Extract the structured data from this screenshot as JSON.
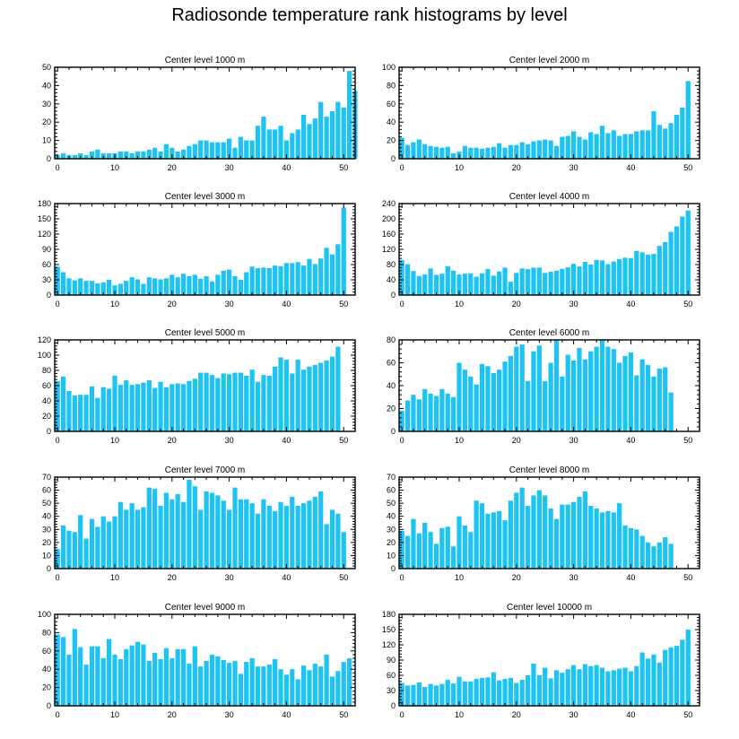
{
  "title": "Radiosonde temperature rank histograms by level",
  "colors": {
    "bar": "#1ec3f4",
    "axis": "#000000"
  },
  "chart_data": [
    {
      "type": "bar",
      "title": "Center level 1000 m",
      "xlim": [
        -0.5,
        52
      ],
      "xticks": [
        0,
        10,
        20,
        30,
        40,
        50
      ],
      "ylim": [
        0,
        50
      ],
      "yticks": [
        0,
        10,
        20,
        30,
        40,
        50
      ],
      "values": [
        2,
        3,
        2,
        2,
        3,
        2,
        4,
        5,
        3,
        3,
        3,
        4,
        4,
        3,
        4,
        4,
        5,
        6,
        4,
        8,
        6,
        4,
        5,
        7,
        8,
        10,
        10,
        9,
        9,
        9,
        11,
        6,
        12,
        10,
        10,
        18,
        23,
        16,
        16,
        18,
        10,
        14,
        16,
        24,
        19,
        22,
        31,
        23,
        26,
        31,
        28,
        48,
        37
      ]
    },
    {
      "type": "bar",
      "title": "Center level 2000 m",
      "xlim": [
        -0.5,
        52
      ],
      "xticks": [
        0,
        10,
        20,
        30,
        40,
        50
      ],
      "ylim": [
        0,
        100
      ],
      "yticks": [
        0,
        20,
        40,
        60,
        80,
        100
      ],
      "values": [
        23,
        15,
        18,
        21,
        16,
        14,
        13,
        12,
        13,
        6,
        8,
        14,
        12,
        12,
        11,
        12,
        13,
        17,
        12,
        15,
        15,
        18,
        16,
        19,
        20,
        21,
        20,
        14,
        24,
        25,
        30,
        24,
        21,
        29,
        27,
        36,
        28,
        31,
        25,
        27,
        27,
        30,
        31,
        31,
        52,
        37,
        33,
        39,
        48,
        56,
        85
      ]
    },
    {
      "type": "bar",
      "title": "Center level 3000 m",
      "xlim": [
        -0.5,
        52
      ],
      "xticks": [
        0,
        10,
        20,
        30,
        40,
        50
      ],
      "ylim": [
        0,
        180
      ],
      "yticks": [
        0,
        30,
        60,
        90,
        120,
        150,
        180
      ],
      "values": [
        56,
        45,
        33,
        29,
        33,
        28,
        28,
        23,
        25,
        30,
        19,
        22,
        28,
        35,
        31,
        22,
        35,
        33,
        31,
        33,
        40,
        35,
        42,
        37,
        40,
        32,
        37,
        27,
        40,
        48,
        50,
        37,
        30,
        45,
        56,
        53,
        54,
        53,
        58,
        57,
        63,
        63,
        65,
        58,
        71,
        61,
        72,
        93,
        80,
        100,
        172
      ]
    },
    {
      "type": "bar",
      "title": "Center level 4000 m",
      "xlim": [
        -0.5,
        52
      ],
      "xticks": [
        0,
        10,
        20,
        30,
        40,
        50
      ],
      "ylim": [
        0,
        240
      ],
      "yticks": [
        0,
        40,
        80,
        120,
        160,
        200,
        240
      ],
      "values": [
        92,
        81,
        63,
        50,
        54,
        70,
        53,
        56,
        76,
        64,
        54,
        56,
        57,
        48,
        57,
        68,
        51,
        62,
        72,
        35,
        58,
        70,
        68,
        72,
        72,
        58,
        61,
        64,
        69,
        73,
        82,
        75,
        87,
        80,
        92,
        91,
        81,
        88,
        94,
        98,
        97,
        116,
        112,
        106,
        108,
        129,
        139,
        166,
        180,
        206,
        222
      ]
    },
    {
      "type": "bar",
      "title": "Center level 5000 m",
      "xlim": [
        -0.5,
        52
      ],
      "xticks": [
        0,
        10,
        20,
        30,
        40,
        50
      ],
      "ylim": [
        0,
        120
      ],
      "yticks": [
        0,
        20,
        40,
        60,
        80,
        100,
        120
      ],
      "values": [
        66,
        72,
        53,
        47,
        48,
        48,
        59,
        44,
        58,
        56,
        73,
        61,
        67,
        61,
        62,
        64,
        67,
        57,
        65,
        58,
        62,
        63,
        62,
        66,
        69,
        77,
        77,
        74,
        70,
        76,
        75,
        77,
        77,
        73,
        81,
        65,
        74,
        73,
        85,
        97,
        94,
        76,
        94,
        81,
        85,
        87,
        90,
        93,
        98,
        111
      ]
    },
    {
      "type": "bar",
      "title": "Center level 6000 m",
      "xlim": [
        -0.5,
        52
      ],
      "xticks": [
        0,
        10,
        20,
        30,
        40,
        50
      ],
      "ylim": [
        0,
        80
      ],
      "yticks": [
        0,
        20,
        40,
        60,
        80
      ],
      "values": [
        18,
        27,
        32,
        28,
        37,
        33,
        31,
        37,
        33,
        30,
        60,
        54,
        48,
        41,
        59,
        57,
        51,
        54,
        61,
        66,
        74,
        76,
        44,
        70,
        75,
        44,
        60,
        80,
        48,
        67,
        62,
        73,
        63,
        70,
        74,
        80,
        74,
        72,
        60,
        66,
        69,
        49,
        63,
        58,
        48,
        55,
        56,
        34
      ]
    },
    {
      "type": "bar",
      "title": "Center level 7000 m",
      "xlim": [
        -0.5,
        52
      ],
      "xticks": [
        0,
        10,
        20,
        30,
        40,
        50
      ],
      "ylim": [
        0,
        70
      ],
      "yticks": [
        0,
        10,
        20,
        30,
        40,
        50,
        60,
        70
      ],
      "values": [
        15,
        33,
        29,
        28,
        41,
        23,
        38,
        32,
        40,
        36,
        40,
        51,
        45,
        50,
        45,
        47,
        62,
        61,
        48,
        58,
        53,
        57,
        51,
        68,
        63,
        45,
        59,
        58,
        56,
        52,
        45,
        62,
        53,
        53,
        50,
        42,
        53,
        48,
        44,
        51,
        48,
        55,
        48,
        50,
        52,
        55,
        59,
        34,
        45,
        42,
        28
      ]
    },
    {
      "type": "bar",
      "title": "Center level 8000 m",
      "xlim": [
        -0.5,
        52
      ],
      "xticks": [
        0,
        10,
        20,
        30,
        40,
        50
      ],
      "ylim": [
        0,
        70
      ],
      "yticks": [
        0,
        10,
        20,
        30,
        40,
        50,
        60,
        70
      ],
      "values": [
        29,
        25,
        38,
        27,
        35,
        28,
        19,
        31,
        32,
        17,
        40,
        33,
        28,
        52,
        50,
        42,
        43,
        44,
        37,
        52,
        58,
        62,
        48,
        56,
        60,
        56,
        46,
        38,
        49,
        49,
        51,
        55,
        59,
        48,
        46,
        43,
        44,
        43,
        50,
        33,
        31,
        30,
        25,
        20,
        17,
        20,
        24,
        19
      ]
    },
    {
      "type": "bar",
      "title": "Center level 9000 m",
      "xlim": [
        -0.5,
        52
      ],
      "xticks": [
        0,
        10,
        20,
        30,
        40,
        50
      ],
      "ylim": [
        0,
        100
      ],
      "yticks": [
        0,
        20,
        40,
        60,
        80,
        100
      ],
      "values": [
        78,
        75,
        56,
        84,
        64,
        45,
        65,
        65,
        52,
        73,
        56,
        51,
        62,
        66,
        70,
        67,
        49,
        58,
        51,
        63,
        52,
        62,
        62,
        46,
        65,
        43,
        49,
        56,
        54,
        50,
        47,
        49,
        35,
        48,
        52,
        43,
        43,
        45,
        51,
        40,
        34,
        40,
        29,
        44,
        39,
        46,
        43,
        56,
        32,
        38,
        48,
        52
      ]
    },
    {
      "type": "bar",
      "title": "Center level 10000 m",
      "xlim": [
        -0.5,
        52
      ],
      "xticks": [
        0,
        10,
        20,
        30,
        40,
        50
      ],
      "ylim": [
        0,
        180
      ],
      "yticks": [
        0,
        30,
        60,
        90,
        120,
        150,
        180
      ],
      "values": [
        45,
        40,
        41,
        46,
        37,
        43,
        40,
        43,
        51,
        44,
        57,
        48,
        48,
        53,
        55,
        56,
        66,
        50,
        53,
        55,
        45,
        51,
        60,
        83,
        60,
        75,
        54,
        70,
        65,
        72,
        80,
        72,
        82,
        78,
        80,
        75,
        68,
        70,
        73,
        75,
        68,
        78,
        105,
        93,
        101,
        85,
        110,
        115,
        118,
        130,
        150
      ]
    }
  ]
}
